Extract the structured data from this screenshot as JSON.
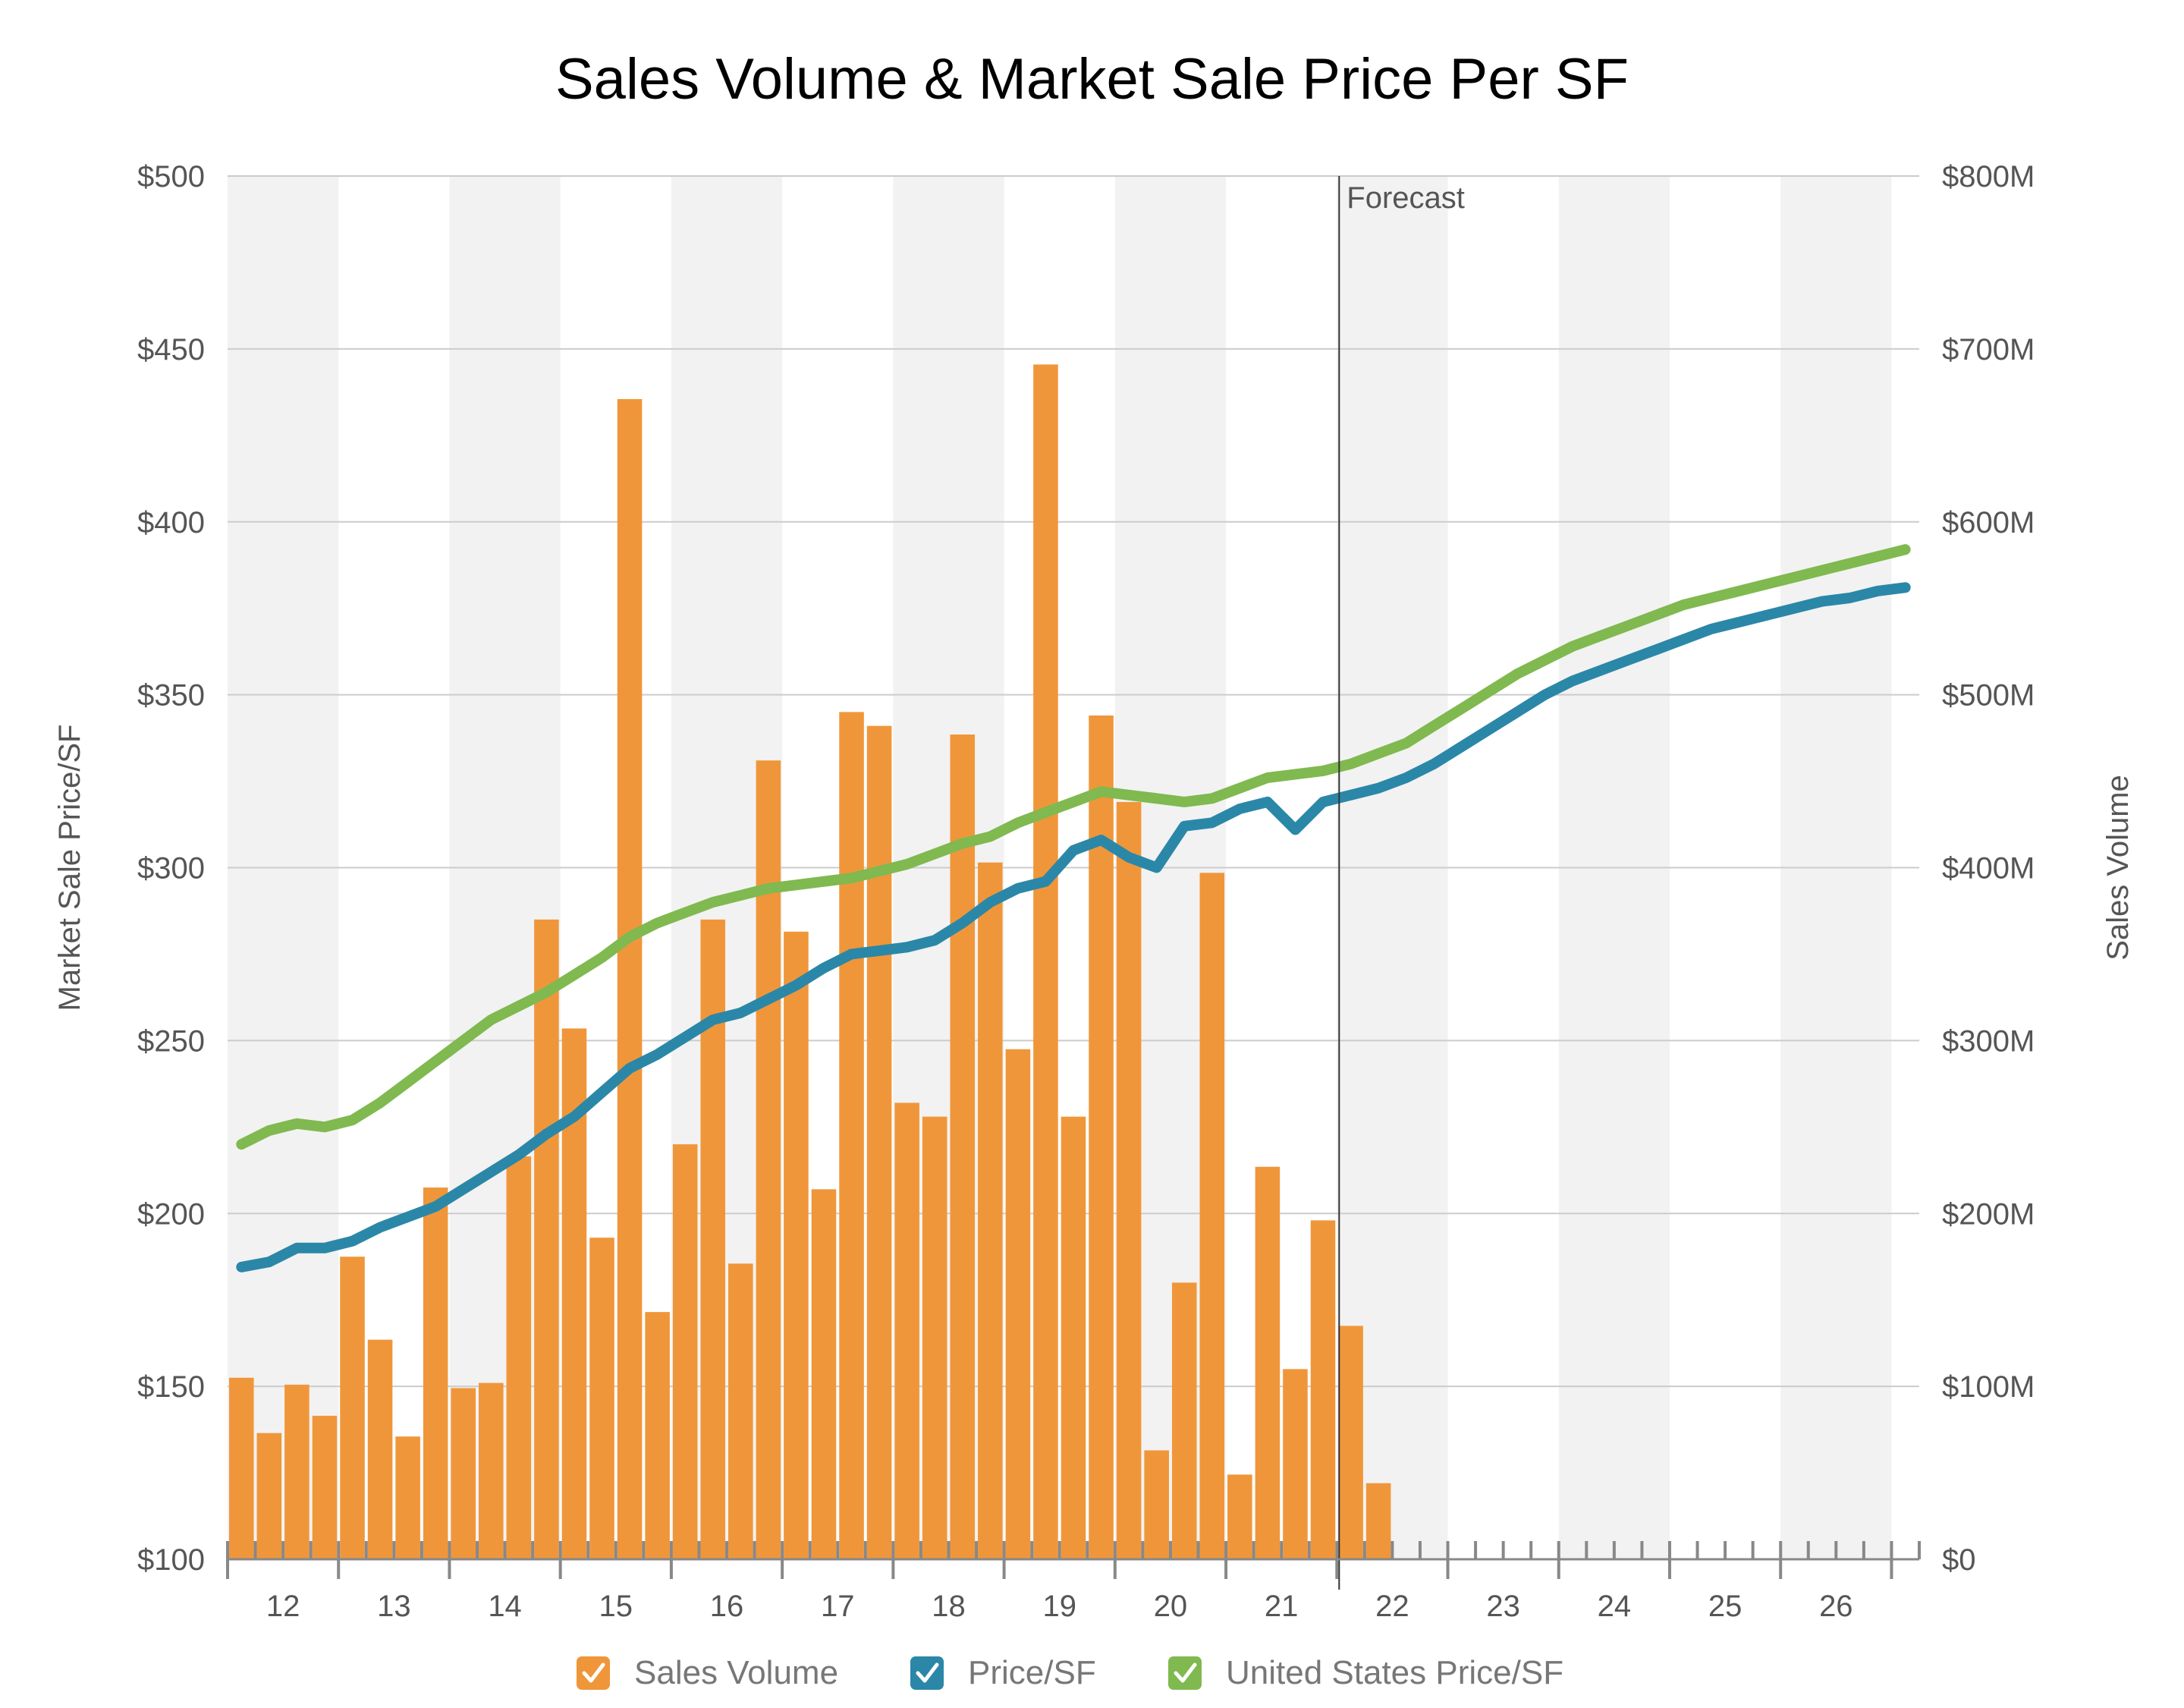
{
  "chart_data": {
    "type": "bar",
    "title": "Sales Volume & Market Sale Price Per SF",
    "ylabel": "Market Sale Price/SF",
    "y2label": "Sales Volume",
    "ylim": [
      100,
      500
    ],
    "y2lim": [
      0,
      800
    ],
    "yticks": [
      "$100",
      "$150",
      "$200",
      "$250",
      "$300",
      "$350",
      "$400",
      "$450",
      "$500"
    ],
    "y2ticks": [
      "$0",
      "$100M",
      "$200M",
      "$300M",
      "$400M",
      "$500M",
      "$600M",
      "$700M",
      "$800M"
    ],
    "year_labels": [
      "12",
      "13",
      "14",
      "15",
      "16",
      "17",
      "18",
      "19",
      "20",
      "21",
      "22",
      "23",
      "24",
      "25",
      "26"
    ],
    "forecast_label": "Forecast",
    "forecast_start_quarter": 40,
    "quarters_total": 61,
    "grid": true,
    "legend_position": "bottom",
    "colors": {
      "bar": "#f0963a",
      "price": "#2b87a8",
      "us_price": "#80b94f",
      "band": "#f2f2f2",
      "grid": "#cccccc",
      "forecast_line": "#333333"
    },
    "series": [
      {
        "name": "Sales Volume",
        "axis": "right",
        "kind": "bar",
        "values": [
          105,
          73,
          101,
          83,
          175,
          127,
          71,
          215,
          99,
          102,
          233,
          370,
          307,
          186,
          671,
          143,
          240,
          370,
          171,
          462,
          363,
          214,
          490,
          482,
          264,
          256,
          477,
          403,
          295,
          691,
          256,
          488,
          438,
          63,
          160,
          397,
          49,
          227,
          110,
          196,
          135,
          44
        ]
      },
      {
        "name": "Price/SF",
        "axis": "left",
        "kind": "line",
        "values": [
          184.5,
          186,
          190,
          190,
          192,
          196,
          199,
          202,
          207,
          212,
          217,
          223,
          228,
          235,
          242,
          246,
          251,
          256,
          258,
          262,
          266,
          271,
          275,
          276,
          277,
          279,
          284,
          290,
          294,
          296,
          305,
          308,
          303,
          300,
          312,
          313,
          317,
          319,
          311,
          319,
          321,
          323,
          326,
          330,
          335,
          340,
          345,
          350,
          354,
          357,
          360,
          363,
          366,
          369,
          371,
          373,
          375,
          377,
          378,
          380,
          381
        ]
      },
      {
        "name": "United States Price/SF",
        "axis": "left",
        "kind": "line",
        "values": [
          220,
          224,
          226,
          225,
          227,
          232,
          238,
          244,
          250,
          256,
          260,
          264,
          269,
          274,
          280,
          284,
          287,
          290,
          292,
          294,
          295,
          296,
          297,
          299,
          301,
          304,
          307,
          309,
          313,
          316,
          319,
          322,
          321,
          320,
          319,
          320,
          323,
          326,
          327,
          328,
          330,
          333,
          336,
          341,
          346,
          351,
          356,
          360,
          364,
          367,
          370,
          373,
          376,
          378,
          380,
          382,
          384,
          386,
          388,
          390,
          392
        ]
      }
    ]
  }
}
